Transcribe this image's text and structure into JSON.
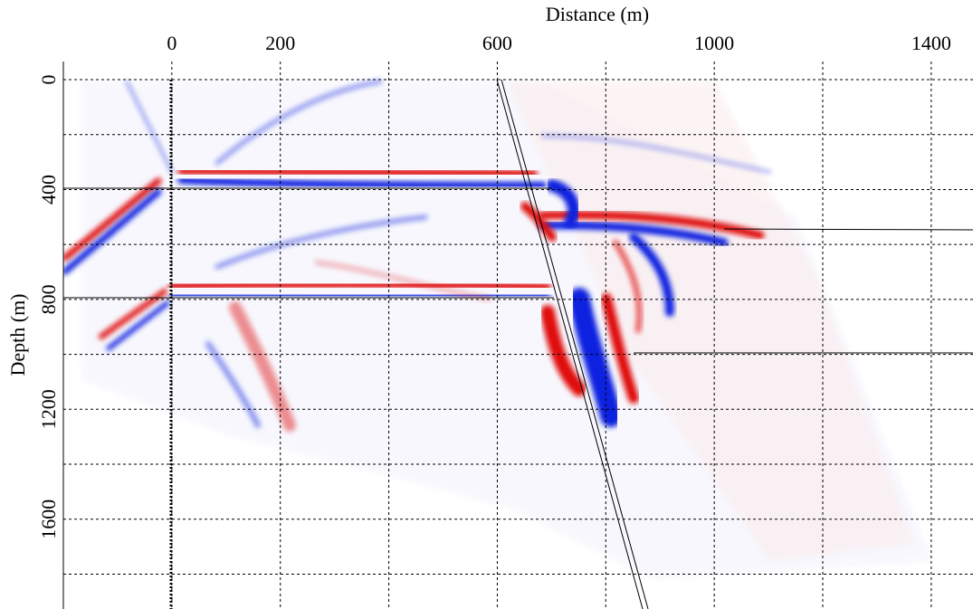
{
  "chart_data": {
    "type": "seismic-section",
    "x_label": "Distance (m)",
    "y_label": "Depth (m)",
    "xlim": [
      -200,
      1477
    ],
    "ylim": [
      -66,
      1927
    ],
    "y_inverted": true,
    "x_axis_position": "top",
    "xticks": [
      0,
      200,
      {
        "value": 400,
        "label": null
      },
      600,
      {
        "value": 800,
        "label": null
      },
      1000,
      {
        "value": 1200,
        "label": null
      },
      1400
    ],
    "yticks": [
      0,
      {
        "value": 200,
        "label": null
      },
      400,
      {
        "value": 600,
        "label": null
      },
      800,
      {
        "value": 1000,
        "label": null
      },
      1200,
      {
        "value": 1400,
        "label": null
      },
      1600,
      {
        "value": 1800,
        "label": null
      }
    ],
    "grid": true
  }
}
